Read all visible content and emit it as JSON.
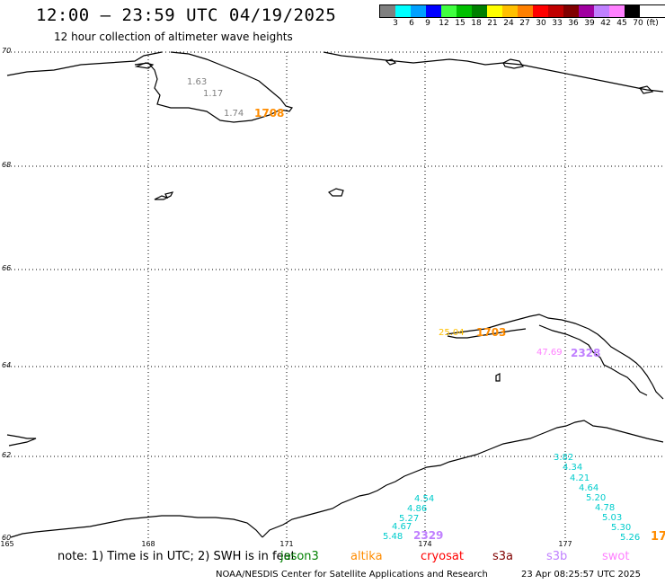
{
  "header": {
    "title": "12:00 – 23:59 UTC 04/19/2025",
    "subtitle": "12 hour collection of altimeter wave heights"
  },
  "legend": {
    "unit": "(ft)",
    "bins": [
      {
        "label": "3",
        "color": "#808080"
      },
      {
        "label": "6",
        "color": "#00ffff"
      },
      {
        "label": "9",
        "color": "#00a0ff"
      },
      {
        "label": "12",
        "color": "#0000ff"
      },
      {
        "label": "15",
        "color": "#40ff40"
      },
      {
        "label": "18",
        "color": "#00c000"
      },
      {
        "label": "21",
        "color": "#008000"
      },
      {
        "label": "24",
        "color": "#ffff00"
      },
      {
        "label": "27",
        "color": "#ffc000"
      },
      {
        "label": "30",
        "color": "#ff8000"
      },
      {
        "label": "33",
        "color": "#ff0000"
      },
      {
        "label": "36",
        "color": "#c00000"
      },
      {
        "label": "39",
        "color": "#800000"
      },
      {
        "label": "42",
        "color": "#a000a0"
      },
      {
        "label": "45",
        "color": "#c080ff"
      },
      {
        "label": "70",
        "color": "#ff80ff"
      },
      {
        "label": "",
        "color": "#000000"
      }
    ]
  },
  "map": {
    "lat_labels": [
      "70",
      "68",
      "66",
      "64",
      "62",
      "60"
    ],
    "lon_labels": [
      "165",
      "168",
      "171",
      "174",
      "177"
    ],
    "observations": [
      {
        "text": "1.63",
        "color": "#808080"
      },
      {
        "text": "1.17",
        "color": "#808080"
      },
      {
        "text": "1.74",
        "color": "#808080"
      },
      {
        "text": "1708",
        "color": "#ff8c00"
      },
      {
        "text": "25.04",
        "color": "#ffc000"
      },
      {
        "text": "1703",
        "color": "#ff8c00"
      },
      {
        "text": "47.69",
        "color": "#ff80ff"
      },
      {
        "text": "2328",
        "color": "#c080ff"
      },
      {
        "text": "3.82",
        "color": "#00cccc"
      },
      {
        "text": "4.34",
        "color": "#00cccc"
      },
      {
        "text": "4.21",
        "color": "#00cccc"
      },
      {
        "text": "4.64",
        "color": "#00cccc"
      },
      {
        "text": "5.20",
        "color": "#00cccc"
      },
      {
        "text": "4.78",
        "color": "#00cccc"
      },
      {
        "text": "5.03",
        "color": "#00cccc"
      },
      {
        "text": "5.30",
        "color": "#00cccc"
      },
      {
        "text": "5.26",
        "color": "#00cccc"
      },
      {
        "text": "17",
        "color": "#ff8c00"
      },
      {
        "text": "4.54",
        "color": "#00cccc"
      },
      {
        "text": "4.86",
        "color": "#00cccc"
      },
      {
        "text": "5.27",
        "color": "#00cccc"
      },
      {
        "text": "4.67",
        "color": "#00cccc"
      },
      {
        "text": "5.48",
        "color": "#00cccc"
      },
      {
        "text": "2329",
        "color": "#c080ff"
      }
    ]
  },
  "footer": {
    "note": "note: 1) Time is in UTC; 2) SWH is in feet",
    "satellites": [
      {
        "name": "jason3",
        "color": "#008000"
      },
      {
        "name": "altika",
        "color": "#ff8c00"
      },
      {
        "name": "cryosat",
        "color": "#ff0000"
      },
      {
        "name": "s3a",
        "color": "#800000"
      },
      {
        "name": "s3b",
        "color": "#c080ff"
      },
      {
        "name": "swot",
        "color": "#ff80ff"
      }
    ],
    "credit": "NOAA/NESDIS Center for Satellite Applications and Research",
    "timestamp": "23 Apr 08:25:57 UTC 2025"
  }
}
